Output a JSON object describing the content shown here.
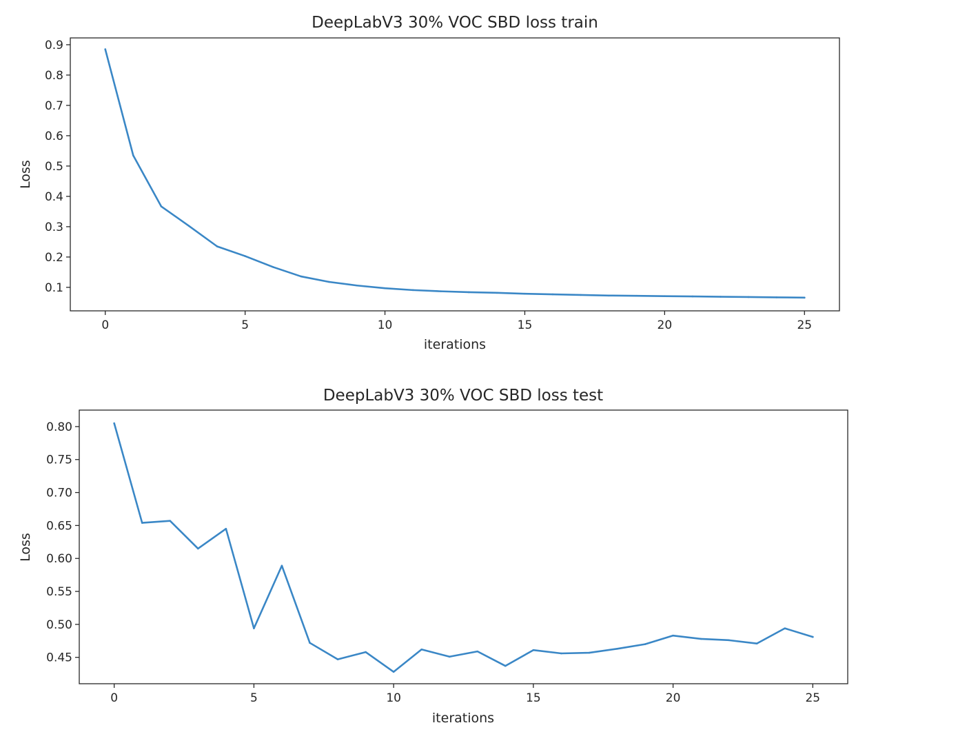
{
  "chart_data": [
    {
      "type": "line",
      "title": "DeepLabV3 30% VOC SBD loss train",
      "xlabel": "iterations",
      "ylabel": "Loss",
      "xlim": [
        -1.25,
        26.25
      ],
      "ylim": [
        0.0225,
        0.9225
      ],
      "xticks": [
        0,
        5,
        10,
        15,
        20,
        25
      ],
      "xtick_labels": [
        "0",
        "5",
        "10",
        "15",
        "20",
        "25"
      ],
      "yticks": [
        0.1,
        0.2,
        0.3,
        0.4,
        0.5,
        0.6,
        0.7,
        0.8,
        0.9
      ],
      "ytick_labels": [
        "0.1",
        "0.2",
        "0.3",
        "0.4",
        "0.5",
        "0.6",
        "0.7",
        "0.8",
        "0.9"
      ],
      "grid": false,
      "color": "#3a87c6",
      "x": [
        0,
        1,
        2,
        3,
        4,
        5,
        6,
        7,
        8,
        9,
        10,
        11,
        12,
        13,
        14,
        15,
        16,
        17,
        18,
        19,
        20,
        21,
        22,
        23,
        24,
        25
      ],
      "y": [
        0.885,
        0.535,
        0.367,
        0.302,
        0.235,
        0.203,
        0.167,
        0.136,
        0.118,
        0.106,
        0.097,
        0.091,
        0.087,
        0.084,
        0.082,
        0.079,
        0.077,
        0.075,
        0.073,
        0.072,
        0.071,
        0.07,
        0.069,
        0.068,
        0.067,
        0.066
      ]
    },
    {
      "type": "line",
      "title": "DeepLabV3 30% VOC SBD loss test",
      "xlabel": "iterations",
      "ylabel": "Loss",
      "xlim": [
        -1.25,
        26.25
      ],
      "ylim": [
        0.41,
        0.825
      ],
      "xticks": [
        0,
        5,
        10,
        15,
        20,
        25
      ],
      "xtick_labels": [
        "0",
        "5",
        "10",
        "15",
        "20",
        "25"
      ],
      "yticks": [
        0.45,
        0.5,
        0.55,
        0.6,
        0.65,
        0.7,
        0.75,
        0.8
      ],
      "ytick_labels": [
        "0.45",
        "0.50",
        "0.55",
        "0.60",
        "0.65",
        "0.70",
        "0.75",
        "0.80"
      ],
      "grid": false,
      "color": "#3a87c6",
      "x": [
        0,
        1,
        2,
        3,
        4,
        5,
        6,
        7,
        8,
        9,
        10,
        11,
        12,
        13,
        14,
        15,
        16,
        17,
        18,
        19,
        20,
        21,
        22,
        23,
        24,
        25
      ],
      "y": [
        0.805,
        0.654,
        0.657,
        0.615,
        0.645,
        0.494,
        0.589,
        0.472,
        0.447,
        0.458,
        0.428,
        0.462,
        0.451,
        0.459,
        0.437,
        0.461,
        0.456,
        0.457,
        0.463,
        0.47,
        0.483,
        0.478,
        0.476,
        0.471,
        0.494,
        0.481
      ]
    }
  ]
}
